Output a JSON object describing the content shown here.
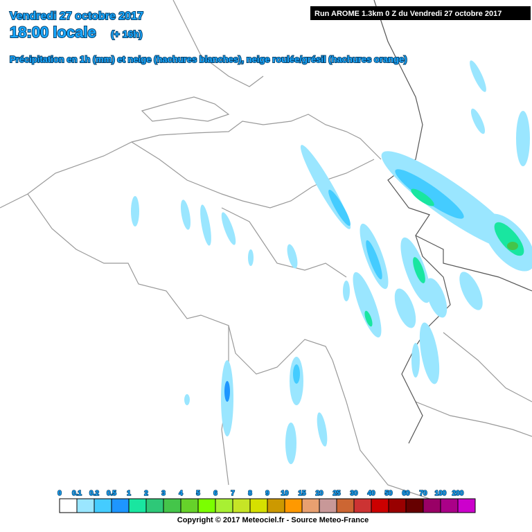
{
  "header": {
    "date": "Vendredi 27 octobre 2017",
    "time": "18:00 locale",
    "lead": "(+ 16h)",
    "subtitle": "Précipitation en 1h (mm) et neige (hachures blanches), neige roulée/grésil (hachures orange)",
    "run": "Run AROME 1.3km 0 Z du Vendredi 27 octobre 2017"
  },
  "legend": {
    "labels": [
      0,
      0.1,
      0.2,
      0.5,
      1,
      2,
      3,
      4,
      5,
      6,
      7,
      8,
      9,
      10,
      15,
      20,
      25,
      30,
      40,
      50,
      60,
      70,
      100,
      200
    ],
    "colors": [
      "#ffffff",
      "#9ae6ff",
      "#44ccff",
      "#1e96ff",
      "#19e6a0",
      "#2ec878",
      "#44c54a",
      "#66d22a",
      "#7bff00",
      "#a8f033",
      "#c6e526",
      "#d6e000",
      "#cc9900",
      "#ff9900",
      "#e8a070",
      "#c89898",
      "#cc6633",
      "#cc3333",
      "#cc0000",
      "#990000",
      "#660000",
      "#990066",
      "#aa0088",
      "#cc00cc",
      "#ff00ff"
    ]
  },
  "footer": {
    "copyright": "Copyright © 2017 Meteociel.fr - Source Meteo-France"
  }
}
